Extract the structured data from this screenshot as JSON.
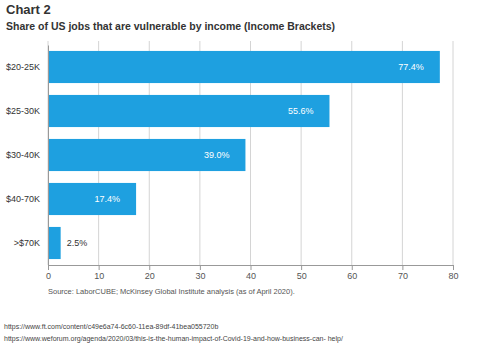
{
  "chart_data": {
    "type": "bar",
    "orientation": "horizontal",
    "title": "Chart 2",
    "subtitle": "Share of US jobs that are vulnerable by income (Income Brackets)",
    "categories": [
      "$20-25K",
      "$25-30K",
      "$30-40K",
      "$40-70K",
      ">$70K"
    ],
    "values": [
      77.4,
      55.6,
      39.0,
      17.4,
      2.5
    ],
    "value_labels": [
      "77.4%",
      "55.6%",
      "39.0%",
      "17.4%",
      "2.5%"
    ],
    "data_labels": true,
    "color": "#1ea0e0",
    "xlim": [
      0,
      80
    ],
    "xticks": [
      0,
      10,
      20,
      30,
      40,
      50,
      60,
      70,
      80
    ],
    "grid": true,
    "source": "Source: LaborCUBE; McKinsey Global Institute analysis (as of April 2020)."
  },
  "footnotes": [
    "https://www.ft.com/content/c49e6a74-6c60-11ea-89df-41bea055720b",
    "https://www.weforum.org/agenda/2020/03/this-is-the-human-impact-of-Covid-19-and-how-business-can- help/"
  ]
}
